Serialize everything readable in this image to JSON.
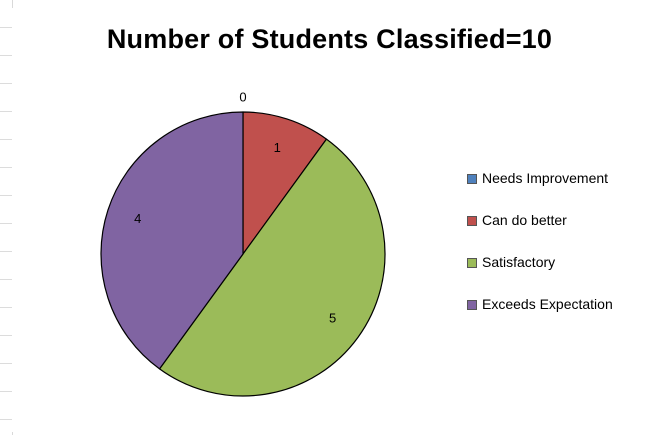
{
  "chart_data": {
    "type": "pie",
    "title": "Number of Students Classified=10",
    "categories": [
      "Needs Improvement",
      "Can do better",
      "Satisfactory",
      "Exceeds Expectation"
    ],
    "values": [
      0,
      1,
      5,
      4
    ],
    "data_labels": [
      "0",
      "1",
      "5",
      "4"
    ],
    "colors": [
      "#4F81BD",
      "#C0504D",
      "#9BBB59",
      "#8064A2"
    ],
    "start_angle_deg": 0,
    "direction": "clockwise",
    "legend_position": "right",
    "grid": false
  }
}
